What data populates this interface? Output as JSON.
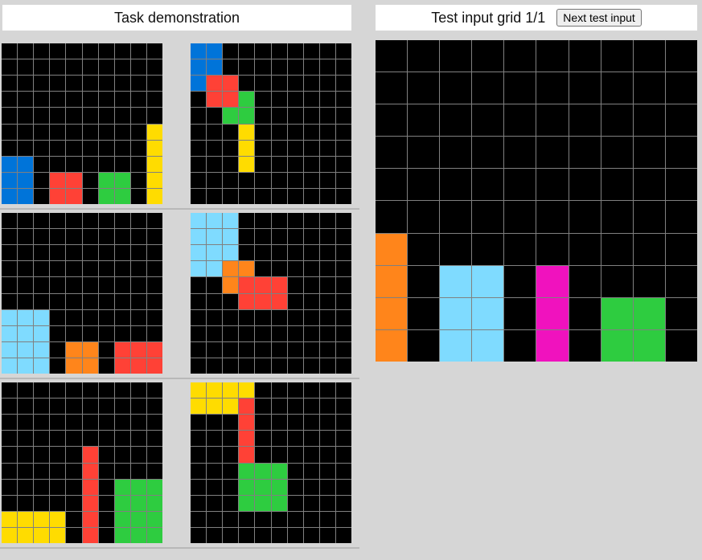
{
  "demo": {
    "title": "Task demonstration",
    "pairs": [
      {
        "input": {
          "rows": 10,
          "cols": 10,
          "cells": [
            [
              0,
              0,
              0,
              0,
              0,
              0,
              0,
              0,
              0,
              0
            ],
            [
              0,
              0,
              0,
              0,
              0,
              0,
              0,
              0,
              0,
              0
            ],
            [
              0,
              0,
              0,
              0,
              0,
              0,
              0,
              0,
              0,
              0
            ],
            [
              0,
              0,
              0,
              0,
              0,
              0,
              0,
              0,
              0,
              0
            ],
            [
              0,
              0,
              0,
              0,
              0,
              0,
              0,
              0,
              0,
              0
            ],
            [
              0,
              0,
              0,
              0,
              0,
              0,
              0,
              0,
              0,
              4
            ],
            [
              0,
              0,
              0,
              0,
              0,
              0,
              0,
              0,
              0,
              4
            ],
            [
              1,
              1,
              0,
              0,
              0,
              0,
              0,
              0,
              0,
              4
            ],
            [
              1,
              1,
              0,
              2,
              2,
              0,
              3,
              3,
              0,
              4
            ],
            [
              1,
              1,
              0,
              2,
              2,
              0,
              3,
              3,
              0,
              4
            ]
          ]
        },
        "output": {
          "rows": 10,
          "cols": 10,
          "cells": [
            [
              1,
              1,
              0,
              0,
              0,
              0,
              0,
              0,
              0,
              0
            ],
            [
              1,
              1,
              0,
              0,
              0,
              0,
              0,
              0,
              0,
              0
            ],
            [
              1,
              2,
              2,
              0,
              0,
              0,
              0,
              0,
              0,
              0
            ],
            [
              0,
              2,
              2,
              3,
              0,
              0,
              0,
              0,
              0,
              0
            ],
            [
              0,
              0,
              3,
              3,
              0,
              0,
              0,
              0,
              0,
              0
            ],
            [
              0,
              0,
              0,
              4,
              0,
              0,
              0,
              0,
              0,
              0
            ],
            [
              0,
              0,
              0,
              4,
              0,
              0,
              0,
              0,
              0,
              0
            ],
            [
              0,
              0,
              0,
              4,
              0,
              0,
              0,
              0,
              0,
              0
            ],
            [
              0,
              0,
              0,
              0,
              0,
              0,
              0,
              0,
              0,
              0
            ],
            [
              0,
              0,
              0,
              0,
              0,
              0,
              0,
              0,
              0,
              0
            ]
          ]
        }
      },
      {
        "input": {
          "rows": 10,
          "cols": 10,
          "cells": [
            [
              0,
              0,
              0,
              0,
              0,
              0,
              0,
              0,
              0,
              0
            ],
            [
              0,
              0,
              0,
              0,
              0,
              0,
              0,
              0,
              0,
              0
            ],
            [
              0,
              0,
              0,
              0,
              0,
              0,
              0,
              0,
              0,
              0
            ],
            [
              0,
              0,
              0,
              0,
              0,
              0,
              0,
              0,
              0,
              0
            ],
            [
              0,
              0,
              0,
              0,
              0,
              0,
              0,
              0,
              0,
              0
            ],
            [
              0,
              0,
              0,
              0,
              0,
              0,
              0,
              0,
              0,
              0
            ],
            [
              5,
              5,
              5,
              0,
              0,
              0,
              0,
              0,
              0,
              0
            ],
            [
              5,
              5,
              5,
              0,
              0,
              0,
              0,
              0,
              0,
              0
            ],
            [
              5,
              5,
              5,
              0,
              6,
              6,
              0,
              2,
              2,
              2
            ],
            [
              5,
              5,
              5,
              0,
              6,
              6,
              0,
              2,
              2,
              2
            ]
          ]
        },
        "output": {
          "rows": 10,
          "cols": 10,
          "cells": [
            [
              5,
              5,
              5,
              0,
              0,
              0,
              0,
              0,
              0,
              0
            ],
            [
              5,
              5,
              5,
              0,
              0,
              0,
              0,
              0,
              0,
              0
            ],
            [
              5,
              5,
              5,
              0,
              0,
              0,
              0,
              0,
              0,
              0
            ],
            [
              5,
              5,
              6,
              6,
              0,
              0,
              0,
              0,
              0,
              0
            ],
            [
              0,
              0,
              6,
              2,
              2,
              2,
              0,
              0,
              0,
              0
            ],
            [
              0,
              0,
              0,
              2,
              2,
              2,
              0,
              0,
              0,
              0
            ],
            [
              0,
              0,
              0,
              0,
              0,
              0,
              0,
              0,
              0,
              0
            ],
            [
              0,
              0,
              0,
              0,
              0,
              0,
              0,
              0,
              0,
              0
            ],
            [
              0,
              0,
              0,
              0,
              0,
              0,
              0,
              0,
              0,
              0
            ],
            [
              0,
              0,
              0,
              0,
              0,
              0,
              0,
              0,
              0,
              0
            ]
          ]
        }
      },
      {
        "input": {
          "rows": 10,
          "cols": 10,
          "cells": [
            [
              0,
              0,
              0,
              0,
              0,
              0,
              0,
              0,
              0,
              0
            ],
            [
              0,
              0,
              0,
              0,
              0,
              0,
              0,
              0,
              0,
              0
            ],
            [
              0,
              0,
              0,
              0,
              0,
              0,
              0,
              0,
              0,
              0
            ],
            [
              0,
              0,
              0,
              0,
              0,
              0,
              0,
              0,
              0,
              0
            ],
            [
              0,
              0,
              0,
              0,
              0,
              2,
              0,
              0,
              0,
              0
            ],
            [
              0,
              0,
              0,
              0,
              0,
              2,
              0,
              0,
              0,
              0
            ],
            [
              0,
              0,
              0,
              0,
              0,
              2,
              0,
              3,
              3,
              3
            ],
            [
              0,
              0,
              0,
              0,
              0,
              2,
              0,
              3,
              3,
              3
            ],
            [
              4,
              4,
              4,
              4,
              0,
              2,
              0,
              3,
              3,
              3
            ],
            [
              4,
              4,
              4,
              4,
              0,
              2,
              0,
              3,
              3,
              3
            ]
          ]
        },
        "output": {
          "rows": 10,
          "cols": 10,
          "cells": [
            [
              4,
              4,
              4,
              4,
              0,
              0,
              0,
              0,
              0,
              0
            ],
            [
              4,
              4,
              4,
              2,
              0,
              0,
              0,
              0,
              0,
              0
            ],
            [
              0,
              0,
              0,
              2,
              0,
              0,
              0,
              0,
              0,
              0
            ],
            [
              0,
              0,
              0,
              2,
              0,
              0,
              0,
              0,
              0,
              0
            ],
            [
              0,
              0,
              0,
              2,
              0,
              0,
              0,
              0,
              0,
              0
            ],
            [
              0,
              0,
              0,
              3,
              3,
              3,
              0,
              0,
              0,
              0
            ],
            [
              0,
              0,
              0,
              3,
              3,
              3,
              0,
              0,
              0,
              0
            ],
            [
              0,
              0,
              0,
              3,
              3,
              3,
              0,
              0,
              0,
              0
            ],
            [
              0,
              0,
              0,
              0,
              0,
              0,
              0,
              0,
              0,
              0
            ],
            [
              0,
              0,
              0,
              0,
              0,
              0,
              0,
              0,
              0,
              0
            ]
          ]
        }
      }
    ]
  },
  "test": {
    "title": "Test input grid 1/1",
    "next_button_label": "Next test input",
    "grid": {
      "rows": 10,
      "cols": 10,
      "cells": [
        [
          0,
          0,
          0,
          0,
          0,
          0,
          0,
          0,
          0,
          0
        ],
        [
          0,
          0,
          0,
          0,
          0,
          0,
          0,
          0,
          0,
          0
        ],
        [
          0,
          0,
          0,
          0,
          0,
          0,
          0,
          0,
          0,
          0
        ],
        [
          0,
          0,
          0,
          0,
          0,
          0,
          0,
          0,
          0,
          0
        ],
        [
          0,
          0,
          0,
          0,
          0,
          0,
          0,
          0,
          0,
          0
        ],
        [
          0,
          0,
          0,
          0,
          0,
          0,
          0,
          0,
          0,
          0
        ],
        [
          6,
          0,
          0,
          0,
          0,
          0,
          0,
          0,
          0,
          0
        ],
        [
          6,
          0,
          5,
          5,
          0,
          7,
          0,
          0,
          0,
          0
        ],
        [
          6,
          0,
          5,
          5,
          0,
          7,
          0,
          3,
          3,
          0
        ],
        [
          6,
          0,
          5,
          5,
          0,
          7,
          0,
          3,
          3,
          0
        ]
      ]
    }
  },
  "palette": {
    "0": "#000000",
    "1": "#0074d9",
    "2": "#ff4136",
    "3": "#2ecc40",
    "4": "#ffdc00",
    "5": "#7fdbff",
    "6": "#ff851b",
    "7": "#f012be"
  }
}
